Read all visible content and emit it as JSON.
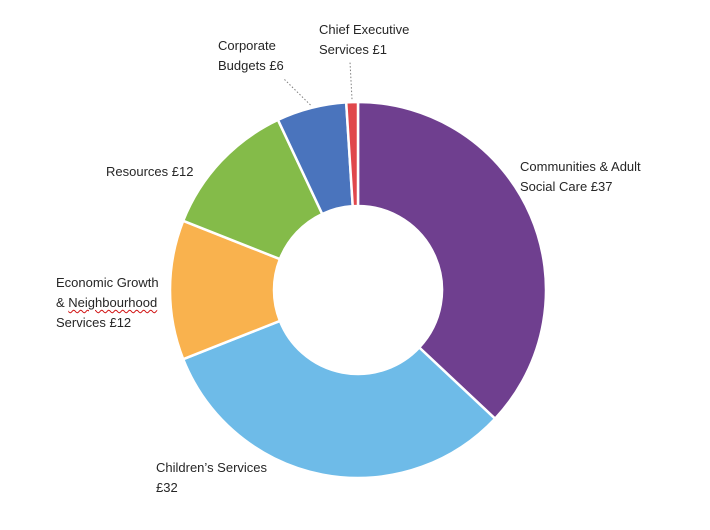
{
  "chart_data": {
    "type": "pie",
    "variant": "donut",
    "title": "",
    "currency_symbol": "£",
    "slices": [
      {
        "key": "communities",
        "label_lines": [
          "Communities & Adult",
          "Social Care £37"
        ],
        "value": 37,
        "color": "#6F3F8F"
      },
      {
        "key": "childrens",
        "label_lines": [
          "Children’s Services",
          "£32"
        ],
        "value": 32,
        "color": "#6EBBE8"
      },
      {
        "key": "economic",
        "label_lines": [
          "Economic Growth",
          "& Neighbourhood",
          "Services £12"
        ],
        "value": 12,
        "color": "#F9B24E"
      },
      {
        "key": "resources",
        "label_lines": [
          "Resources £12"
        ],
        "value": 12,
        "color": "#84BB49"
      },
      {
        "key": "corporate",
        "label_lines": [
          "Corporate",
          "Budgets £6"
        ],
        "value": 6,
        "color": "#4A74BD"
      },
      {
        "key": "chief",
        "label_lines": [
          "Chief Executive",
          "Services £1"
        ],
        "value": 1,
        "color": "#E0474C"
      }
    ],
    "leader_lines": [
      "corporate",
      "chief"
    ],
    "spellcheck_underline": "Neighbourhood",
    "legend": "none"
  }
}
